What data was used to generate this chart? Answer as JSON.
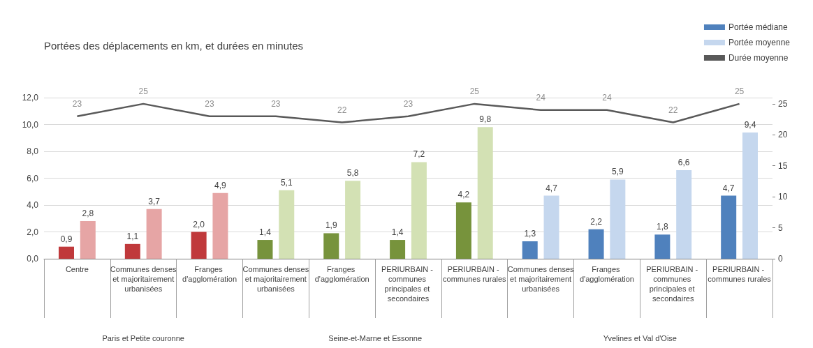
{
  "chart_data": {
    "type": "bar",
    "title": "Portées des déplacements en km, et durées en minutes",
    "categories": [
      "Centre",
      "Communes denses et majoritairement urbanisées",
      "Franges d'agglomération",
      "Communes denses et majoritairement urbanisées",
      "Franges d'agglomération",
      "PERIURBAIN - communes principales et secondaires",
      "PERIURBAIN - communes rurales",
      "Communes denses et majoritairement urbanisées",
      "Franges d'agglomération",
      "PERIURBAIN - communes principales et secondaires",
      "PERIURBAIN - communes rurales"
    ],
    "series": [
      {
        "name": "Portée médiane",
        "color": "#4f81bd",
        "colors": [
          "#c0393b",
          "#c0393b",
          "#c0393b",
          "#77933c",
          "#77933c",
          "#77933c",
          "#77933c",
          "#4f81bd",
          "#4f81bd",
          "#4f81bd",
          "#4f81bd"
        ],
        "values": [
          0.9,
          1.1,
          2.0,
          1.4,
          1.9,
          1.4,
          4.2,
          1.3,
          2.2,
          1.8,
          4.7
        ],
        "value_labels": [
          "0,9",
          "1,1",
          "2,0",
          "1,4",
          "1,9",
          "1,4",
          "4,2",
          "1,3",
          "2,2",
          "1,8",
          "4,7"
        ]
      },
      {
        "name": "Portée moyenne",
        "color": "#c5d7ee",
        "colors": [
          "#e6a5a5",
          "#e6a5a5",
          "#e6a5a5",
          "#d3e1b4",
          "#d3e1b4",
          "#d3e1b4",
          "#d3e1b4",
          "#c5d7ee",
          "#c5d7ee",
          "#c5d7ee",
          "#c5d7ee"
        ],
        "values": [
          2.8,
          3.7,
          4.9,
          5.1,
          5.8,
          7.2,
          9.8,
          4.7,
          5.9,
          6.6,
          9.4
        ],
        "value_labels": [
          "2,8",
          "3,7",
          "4,9",
          "5,1",
          "5,8",
          "7,2",
          "9,8",
          "4,7",
          "5,9",
          "6,6",
          "9,4"
        ]
      },
      {
        "name": "Durée moyenne",
        "type": "line",
        "axis": "y2",
        "color": "#595959",
        "marker": "none",
        "values": [
          23,
          25,
          23,
          23,
          22,
          23,
          25,
          24,
          24,
          22,
          25
        ],
        "value_labels": [
          "23",
          "25",
          "23",
          "23",
          "22",
          "23",
          "25",
          "24",
          "24",
          "22",
          "25"
        ]
      }
    ],
    "ylim": [
      0,
      12
    ],
    "yticks": [
      {
        "value": 0,
        "label": "0,0"
      },
      {
        "value": 2,
        "label": "2,0"
      },
      {
        "value": 4,
        "label": "4,0"
      },
      {
        "value": 6,
        "label": "6,0"
      },
      {
        "value": 8,
        "label": "8,0"
      },
      {
        "value": 10,
        "label": "10,0"
      },
      {
        "value": 12,
        "label": "12,0"
      }
    ],
    "y2lim": [
      0,
      26
    ],
    "y2ticks": [
      0,
      5,
      10,
      15,
      20,
      25
    ],
    "grid": "y",
    "legend": "top right",
    "annotations": [
      "Paris et Petite couronne",
      "Seine-et-Marne et Essonne",
      "Yvelines et Val d'Oise"
    ]
  }
}
